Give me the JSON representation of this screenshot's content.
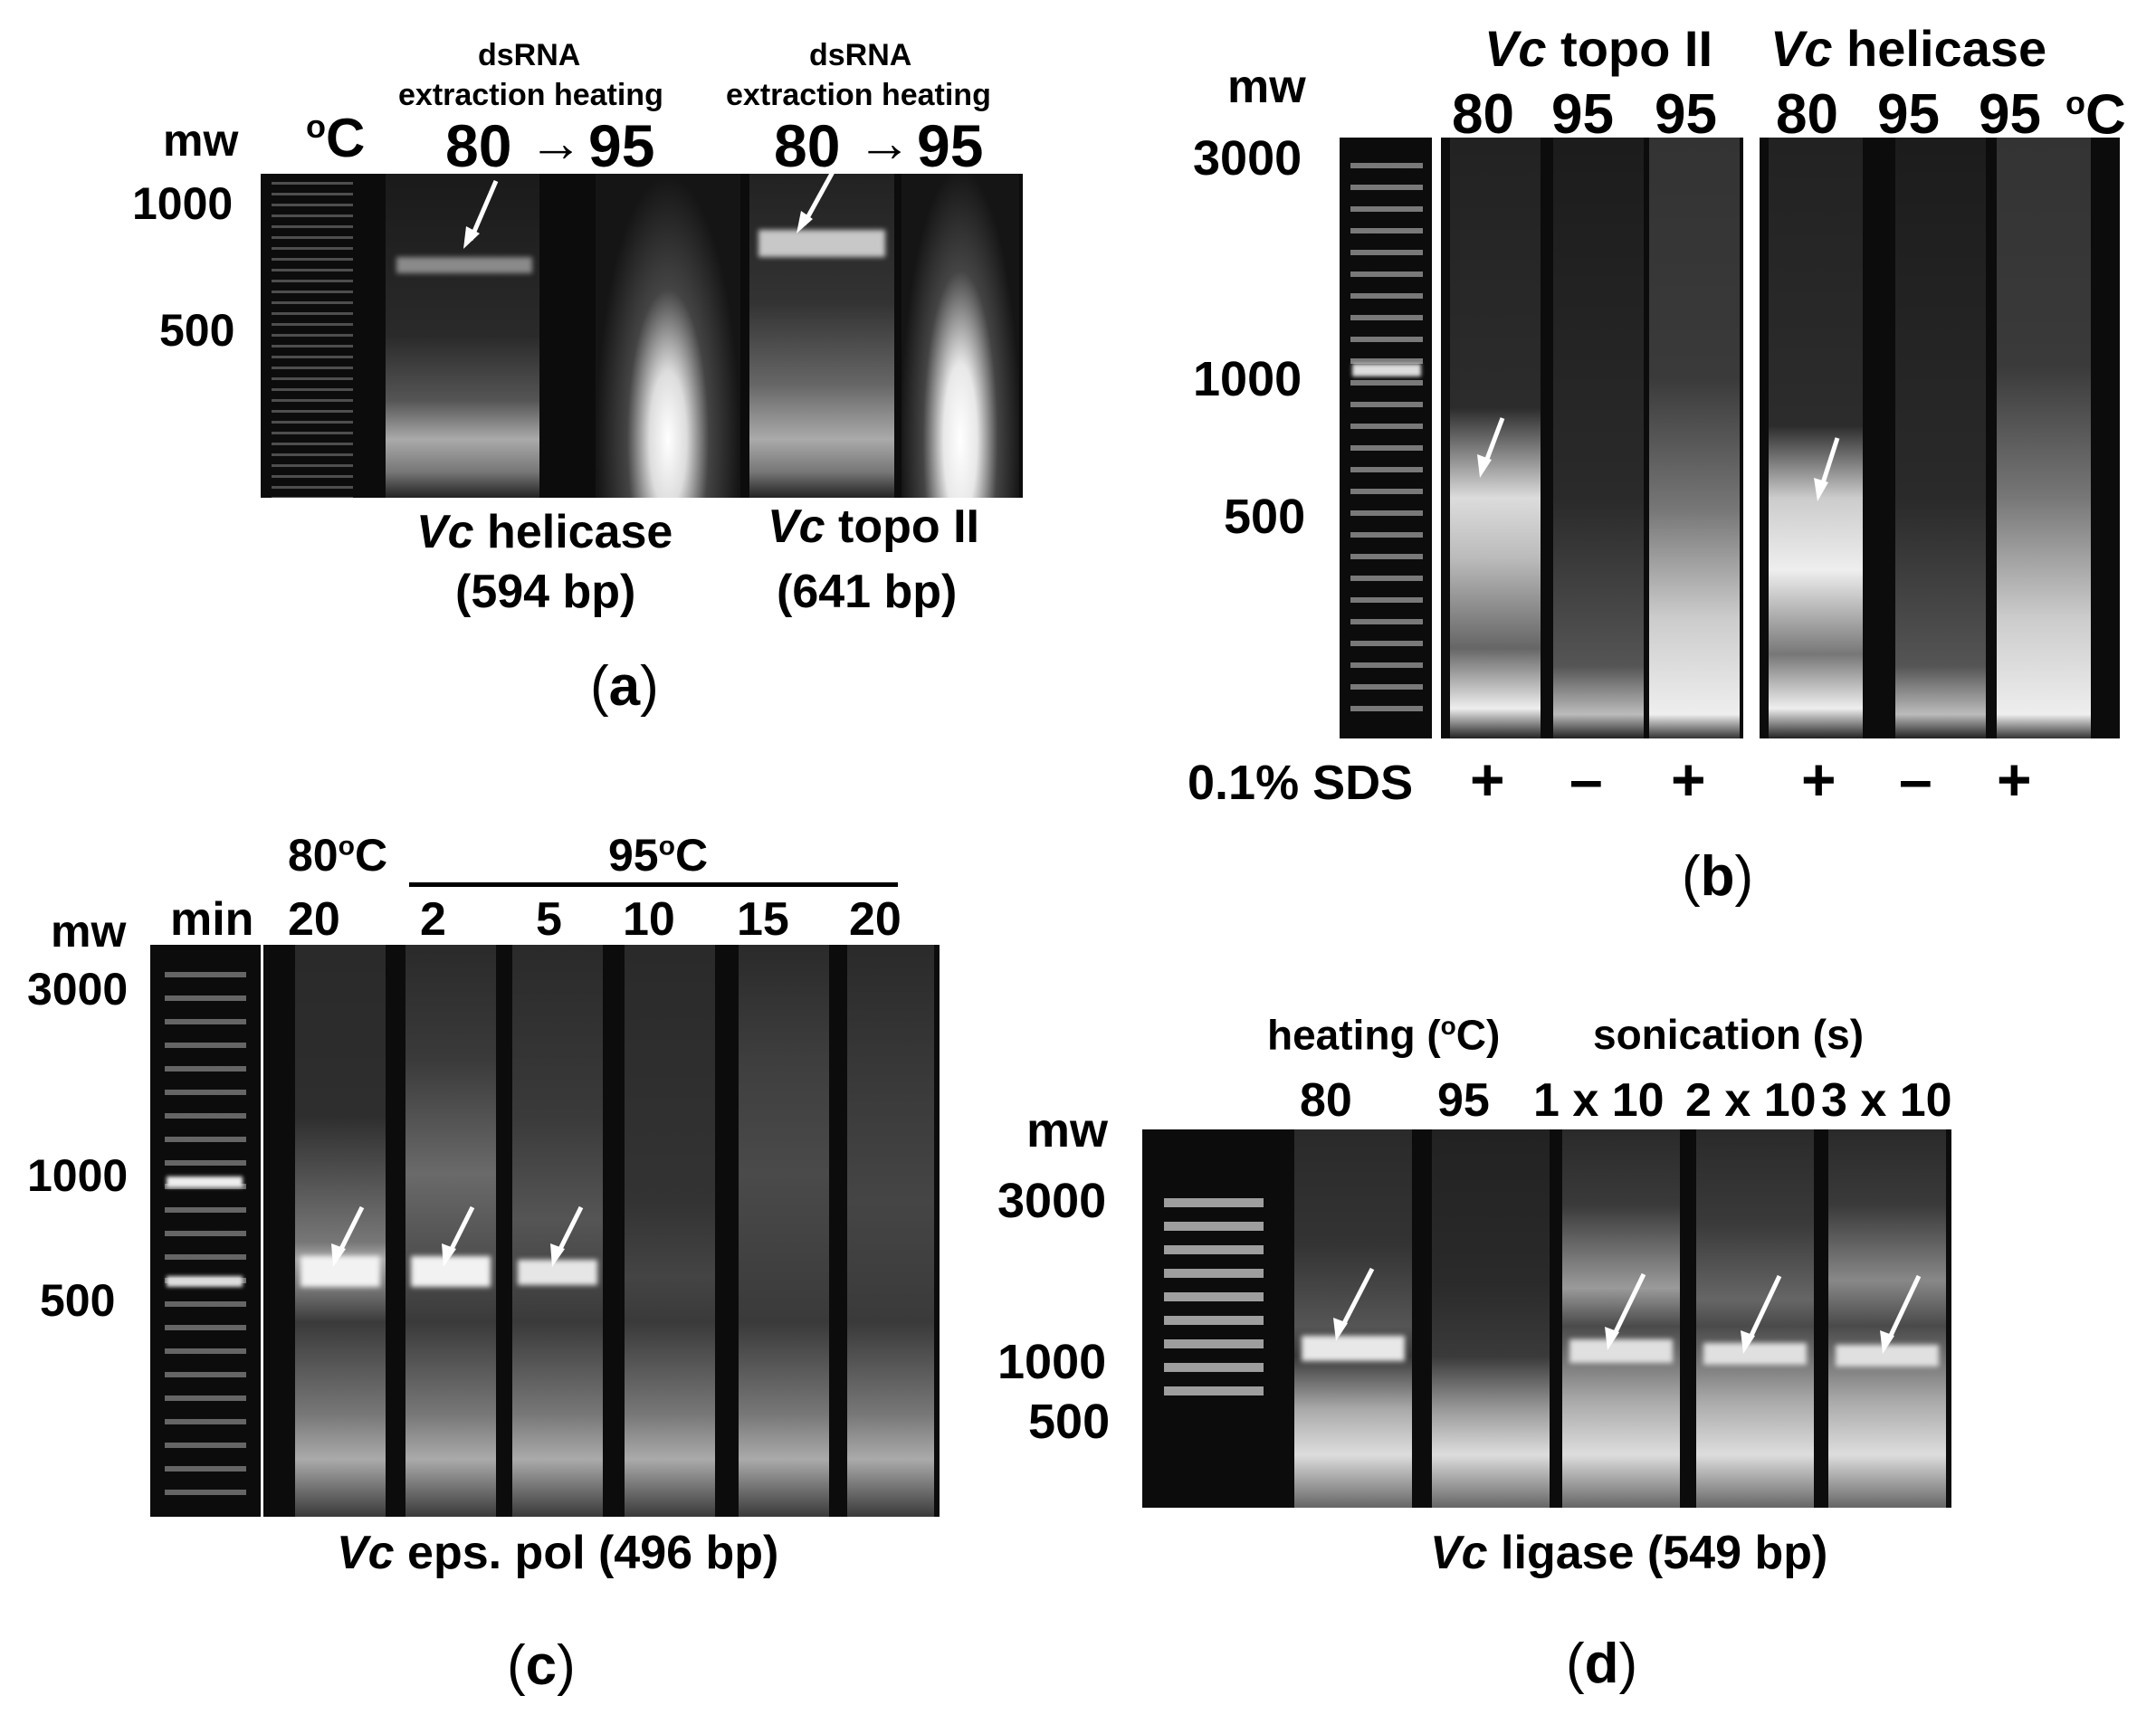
{
  "panel_a": {
    "label": "a",
    "mw": "mw",
    "unit": "°C",
    "unit_base": "C",
    "unit_sup": "o",
    "header_line1": "dsRNA",
    "header_line2": "extraction heating",
    "temp_from": "80",
    "temp_to": "95",
    "arrow_glyph": "→",
    "markers": [
      "1000",
      "500"
    ],
    "gene1_name": "Vc",
    "gene1_rest": " helicase",
    "gene1_size": "(594 bp)",
    "gene2_name": "Vc",
    "gene2_rest": " topo II",
    "gene2_size": "(641 bp)"
  },
  "panel_b": {
    "label": "b",
    "mw": "mw",
    "group1_name": "Vc",
    "group1_rest": " topo II",
    "group2_name": "Vc",
    "group2_rest": " helicase",
    "temps": [
      "80",
      "95",
      "95",
      "80",
      "95",
      "95"
    ],
    "unit_sup": "o",
    "unit_base": "C",
    "markers": [
      "3000",
      "1000",
      "500"
    ],
    "sds_label": "0.1% SDS",
    "sds_signs": [
      "+",
      "–",
      "+",
      "+",
      "–",
      "+"
    ]
  },
  "panel_c": {
    "label": "c",
    "temp1": "80",
    "temp2": "95",
    "unit_sup": "o",
    "unit_base": "C",
    "mw": "mw",
    "min": "min",
    "times": [
      "20",
      "2",
      "5",
      "10",
      "15",
      "20"
    ],
    "markers": [
      "3000",
      "1000",
      "500"
    ],
    "caption_name": "Vc",
    "caption_rest": " eps. pol (496 bp)"
  },
  "panel_d": {
    "label": "d",
    "heating_label": "heating",
    "heating_unit_open": "(",
    "heating_unit_sup": "o",
    "heating_unit_close": "C)",
    "sonication_label": "sonication (s)",
    "mw": "mw",
    "lanes": [
      "80",
      "95",
      "1 x 10",
      "2 x 10",
      "3 x 10"
    ],
    "markers": [
      "3000",
      "1000",
      "500"
    ],
    "caption_name": "Vc",
    "caption_rest": " ligase (549 bp)"
  },
  "colors": {
    "gel_background": "#0c0c0c",
    "band": "#e8e8e8",
    "arrow": "#ffffff",
    "text": "#000000"
  }
}
